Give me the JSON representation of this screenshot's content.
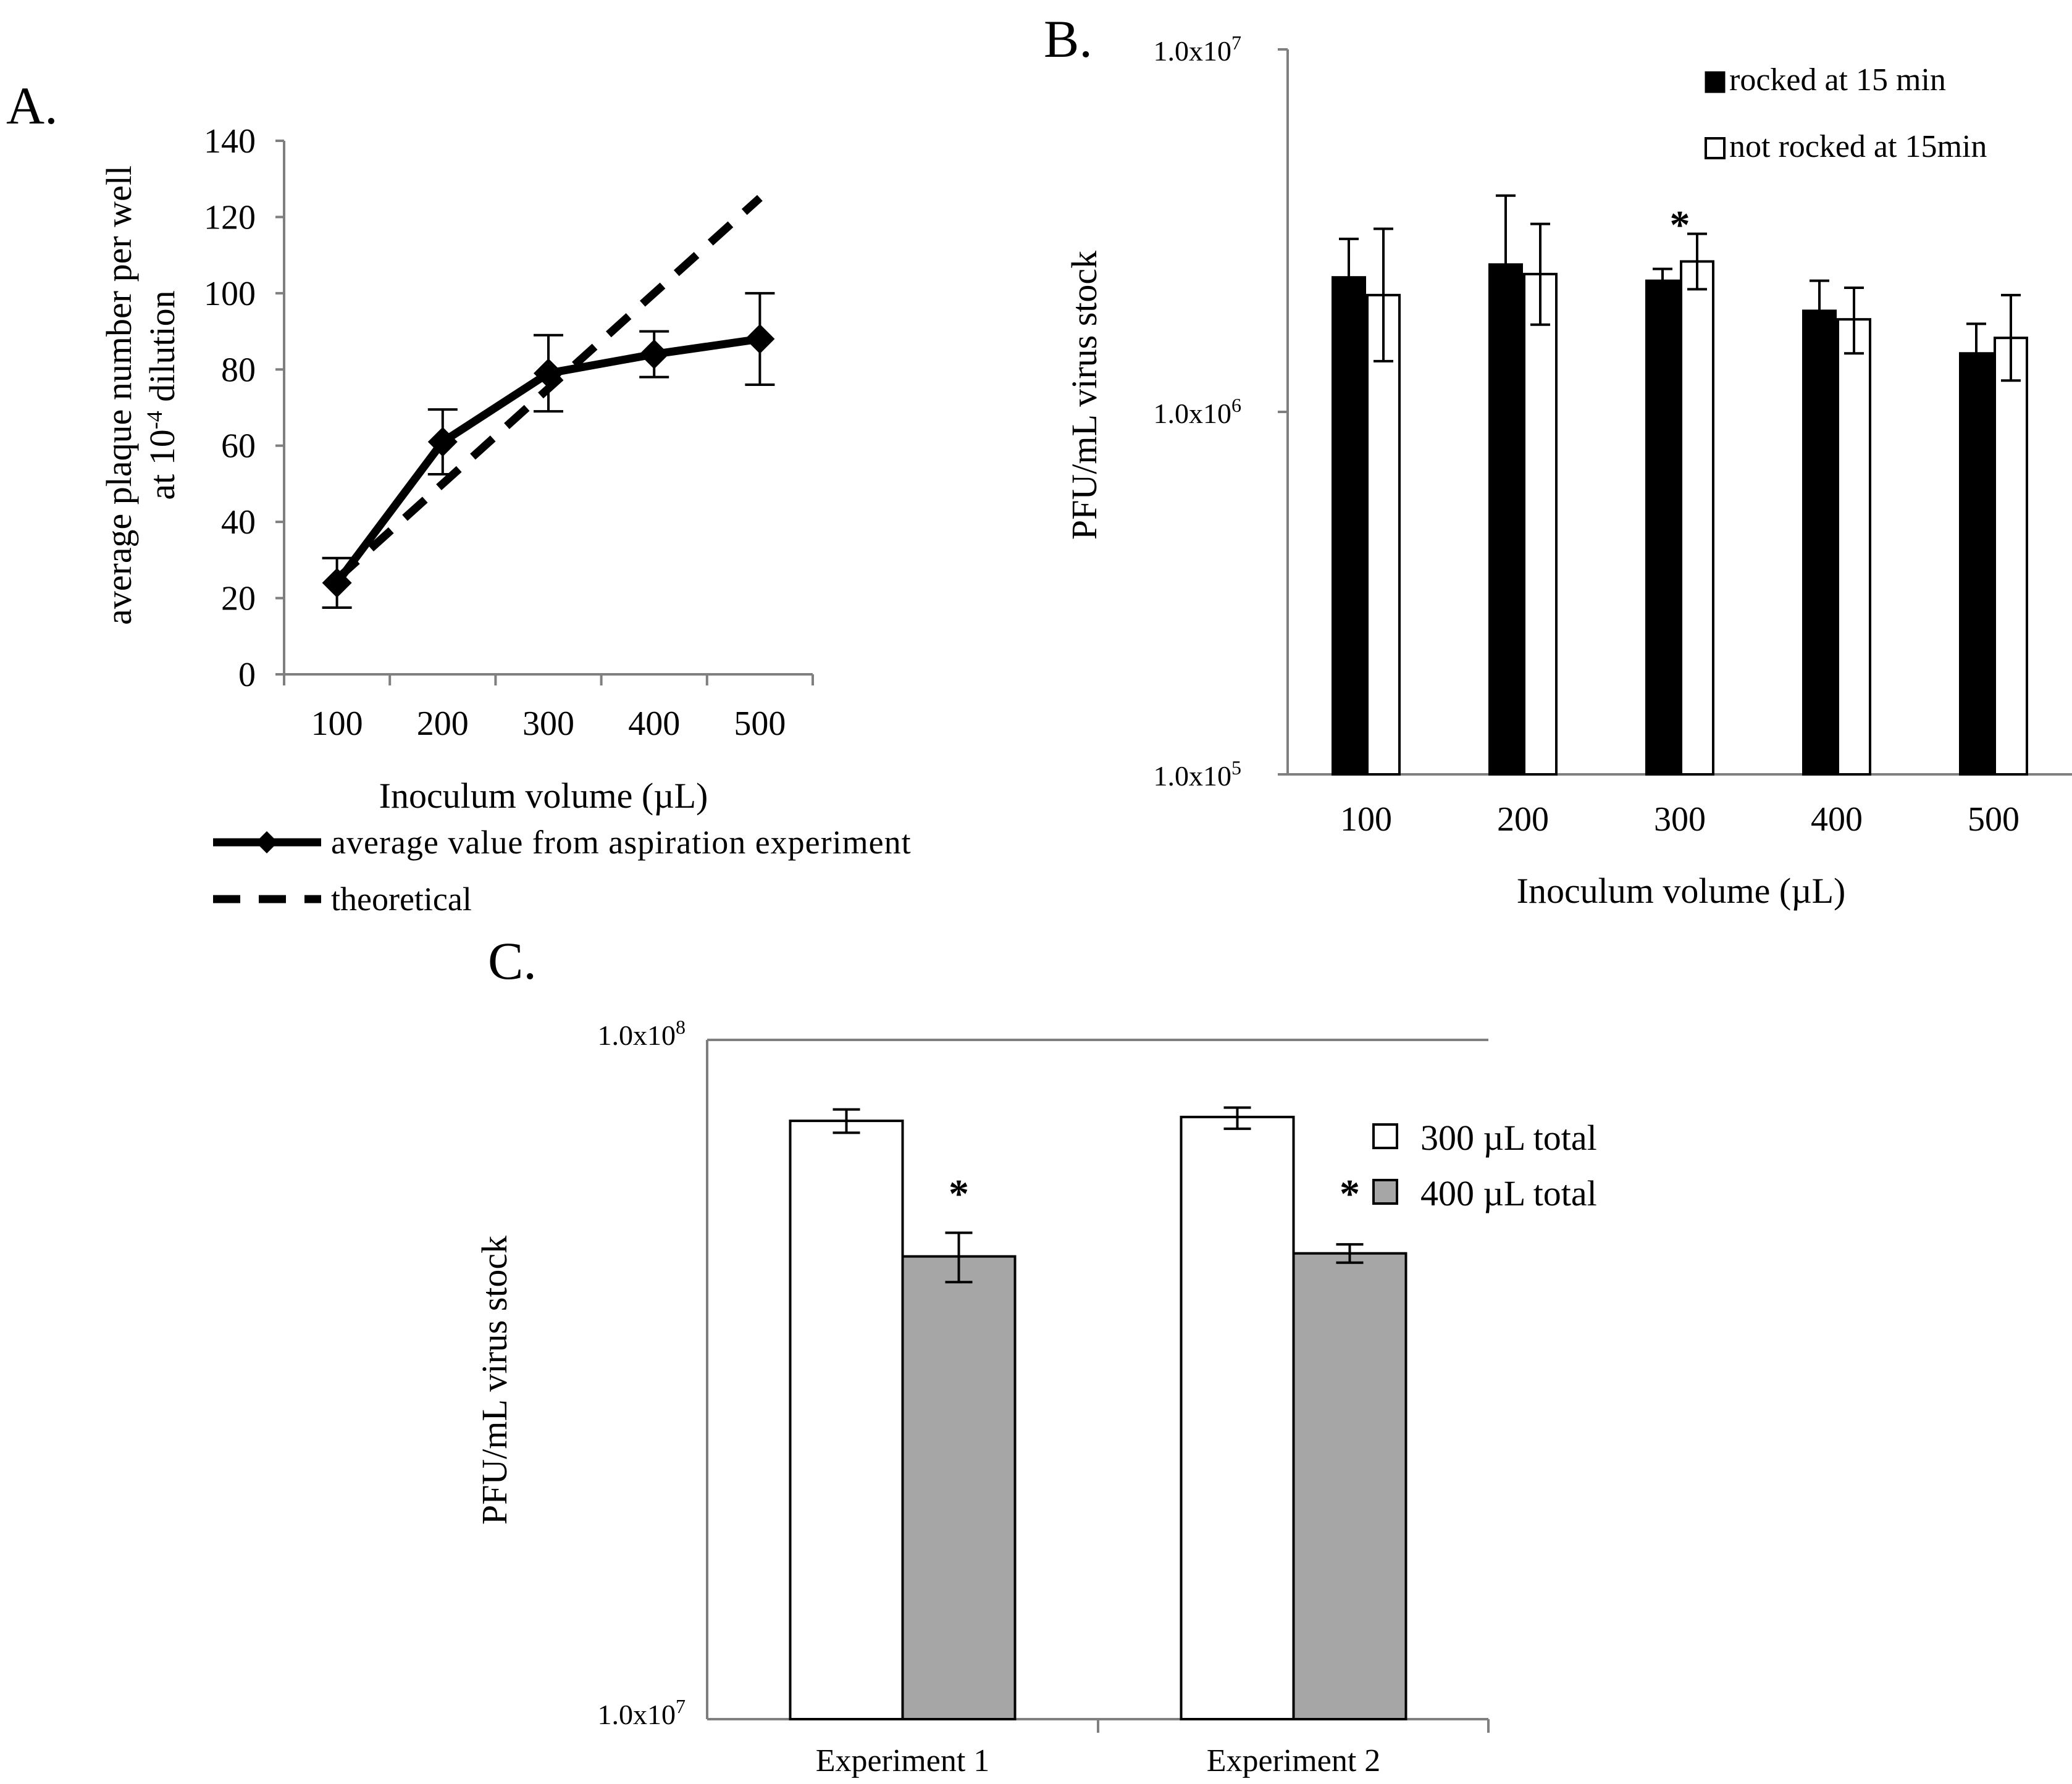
{
  "chart_data": [
    {
      "id": "A",
      "panel_label": "A.",
      "type": "line",
      "xlabel": "Inoculum volume (µL)",
      "ylabel_line1": "average plaque number per well",
      "ylabel_line2_prefix": "at 10",
      "ylabel_line2_sup": "-4",
      "ylabel_line2_suffix": " dilution",
      "categories": [
        "100",
        "200",
        "300",
        "400",
        "500"
      ],
      "yticks": [
        "0",
        "20",
        "40",
        "60",
        "80",
        "100",
        "120",
        "140"
      ],
      "ylim": [
        0,
        140
      ],
      "series": [
        {
          "name": "average value from aspiration experiment",
          "style": "solid-diamond",
          "values": [
            24,
            61,
            79,
            84,
            88
          ],
          "errors": [
            6.5,
            8.5,
            10,
            6,
            12
          ]
        },
        {
          "name": "theoretical",
          "style": "dashed",
          "values": [
            25,
            50,
            75,
            100,
            125
          ]
        }
      ]
    },
    {
      "id": "B",
      "panel_label": "B.",
      "type": "bar",
      "scale": "log",
      "xlabel": "Inoculum volume (µL)",
      "ylabel": "PFU/mL virus stock",
      "ylim": [
        100000,
        10000000
      ],
      "yticks": [
        {
          "base": "1.0x10",
          "exp": "7",
          "value": 10000000
        },
        {
          "base": "1.0x10",
          "exp": "6",
          "value": 1000000
        },
        {
          "base": "1.0x10",
          "exp": "5",
          "value": 100000
        }
      ],
      "categories": [
        "100",
        "200",
        "300",
        "400",
        "500"
      ],
      "series": [
        {
          "name": "rocked at 15 min",
          "color": "#000000",
          "values": [
            2350000,
            2550000,
            2300000,
            1900000,
            1450000
          ],
          "err_high": [
            3000000,
            3950000,
            2480000,
            2300000,
            1750000
          ],
          "err_low": [
            1820000,
            1640000,
            2120000,
            1570000,
            1200000
          ]
        },
        {
          "name": "not rocked at 15min",
          "color": "#ffffff",
          "values": [
            2100000,
            2400000,
            2600000,
            1800000,
            1600000
          ],
          "err_high": [
            3200000,
            3300000,
            3100000,
            2200000,
            2100000
          ],
          "err_low": [
            1380000,
            1740000,
            2180000,
            1450000,
            1220000
          ]
        }
      ],
      "annotations": [
        {
          "text": "*",
          "category": "300"
        }
      ]
    },
    {
      "id": "C",
      "panel_label": "C.",
      "type": "bar",
      "scale": "log",
      "ylabel": "PFU/mL virus stock",
      "ylim": [
        10000000,
        100000000
      ],
      "yticks": [
        {
          "base": "1.0x10",
          "exp": "8",
          "value": 100000000
        },
        {
          "base": "1.0x10",
          "exp": "7",
          "value": 10000000
        }
      ],
      "categories": [
        "Experiment 1",
        "Experiment 2"
      ],
      "series": [
        {
          "name": "300 µL total",
          "color": "#ffffff",
          "values": [
            76000000,
            77000000
          ],
          "err_high": [
            79000000,
            79500000
          ],
          "err_low": [
            73000000,
            74000000
          ]
        },
        {
          "name": "400 µL total",
          "color": "#a6a6a6",
          "values": [
            48000000,
            48500000
          ],
          "err_high": [
            52000000,
            50000000
          ],
          "err_low": [
            44000000,
            47000000
          ]
        }
      ],
      "annotations": [
        {
          "text": "*",
          "category": "Experiment 1"
        },
        {
          "text": "*",
          "category": "Experiment 2"
        }
      ]
    }
  ]
}
